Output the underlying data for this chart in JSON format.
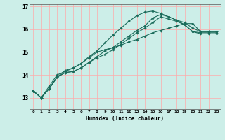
{
  "xlabel": "Humidex (Indice chaleur)",
  "bg_color": "#cceee8",
  "line_color": "#1a6b5a",
  "xlim": [
    -0.5,
    23.5
  ],
  "ylim": [
    12.5,
    17.1
  ],
  "xticks": [
    0,
    1,
    2,
    3,
    4,
    5,
    6,
    7,
    8,
    9,
    10,
    11,
    12,
    13,
    14,
    15,
    16,
    17,
    18,
    19,
    20,
    21,
    22,
    23
  ],
  "yticks": [
    13,
    14,
    15,
    16,
    17
  ],
  "series": [
    [
      13.3,
      13.0,
      13.4,
      13.9,
      14.1,
      14.15,
      14.3,
      14.55,
      14.75,
      14.9,
      15.1,
      15.35,
      15.6,
      15.85,
      16.05,
      16.3,
      16.55,
      16.45,
      16.35,
      16.2,
      15.9,
      15.8,
      15.8,
      15.8
    ],
    [
      13.3,
      13.0,
      13.4,
      13.9,
      14.1,
      14.15,
      14.3,
      14.55,
      14.8,
      15.05,
      15.2,
      15.45,
      15.7,
      15.95,
      16.15,
      16.5,
      16.65,
      16.55,
      16.4,
      16.2,
      15.9,
      15.85,
      15.85,
      15.85
    ],
    [
      13.3,
      13.0,
      13.4,
      13.9,
      14.2,
      14.3,
      14.5,
      14.8,
      15.05,
      15.4,
      15.75,
      16.05,
      16.35,
      16.6,
      16.75,
      16.8,
      16.7,
      16.55,
      16.4,
      16.3,
      16.05,
      15.9,
      15.9,
      15.9
    ],
    [
      13.3,
      13.0,
      13.5,
      14.0,
      14.15,
      14.3,
      14.5,
      14.75,
      15.0,
      15.1,
      15.2,
      15.3,
      15.45,
      15.55,
      15.7,
      15.85,
      15.95,
      16.05,
      16.15,
      16.25,
      16.25,
      15.9,
      15.9,
      15.9
    ]
  ]
}
